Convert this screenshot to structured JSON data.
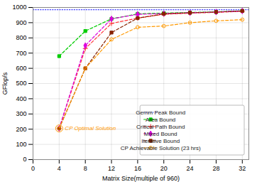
{
  "chart_data": {
    "type": "line",
    "xlabel": "Matrix Size(multiple of 960)",
    "ylabel": "GFlop/s",
    "xlim": [
      0,
      33
    ],
    "ylim": [
      0,
      1000
    ],
    "xticks": [
      0,
      4,
      8,
      12,
      16,
      20,
      24,
      28,
      32
    ],
    "yticks": [
      0,
      100,
      200,
      300,
      400,
      500,
      600,
      700,
      800,
      900,
      1000
    ],
    "grid": true,
    "legend": "lower right",
    "series": [
      {
        "name": "Gemm Peak Bound",
        "color": "#4444ff",
        "line_style": "dotted",
        "x": [
          0,
          33
        ],
        "values": [
          985,
          985
        ]
      },
      {
        "name": "Area Bound",
        "color": "#00cc00",
        "line_style": "dashed",
        "marker": "square",
        "x": [
          4,
          8,
          12,
          16,
          20,
          24,
          28,
          32
        ],
        "values": [
          680,
          845,
          925,
          958,
          963,
          967,
          971,
          978
        ]
      },
      {
        "name": "Critical Path Bound",
        "color": "#ff3333",
        "line_style": "dashed",
        "marker": "plus",
        "x": [
          4,
          8,
          12,
          16,
          20,
          24,
          28,
          32
        ],
        "values": [
          205,
          730,
          895,
          930,
          955,
          963,
          968,
          975
        ]
      },
      {
        "name": "Mixed Bound",
        "color": "#dd00dd",
        "line_style": "dashed",
        "marker": "diamond",
        "x": [
          4,
          8,
          12,
          16,
          20,
          24,
          28,
          32
        ],
        "values": [
          205,
          750,
          925,
          955,
          960,
          965,
          970,
          977
        ]
      },
      {
        "name": "Iterative Bound",
        "color": "#882200",
        "line_style": "dashed",
        "marker": "square",
        "x": [
          4,
          8,
          12,
          16,
          20,
          24,
          28,
          32
        ],
        "values": [
          205,
          600,
          835,
          930,
          958,
          965,
          970,
          977
        ]
      },
      {
        "name": "CP Achievable Solution (23 hrs)",
        "color": "#ff9900",
        "line_style": "dashed",
        "marker": "circle",
        "x": [
          4,
          8,
          12,
          16,
          20,
          24,
          28,
          32
        ],
        "values": [
          205,
          600,
          790,
          870,
          878,
          900,
          912,
          920
        ]
      }
    ],
    "annotations": [
      {
        "text": "CP Optimal Solution",
        "x": 4,
        "y": 205,
        "color": "#ff9900"
      }
    ]
  }
}
